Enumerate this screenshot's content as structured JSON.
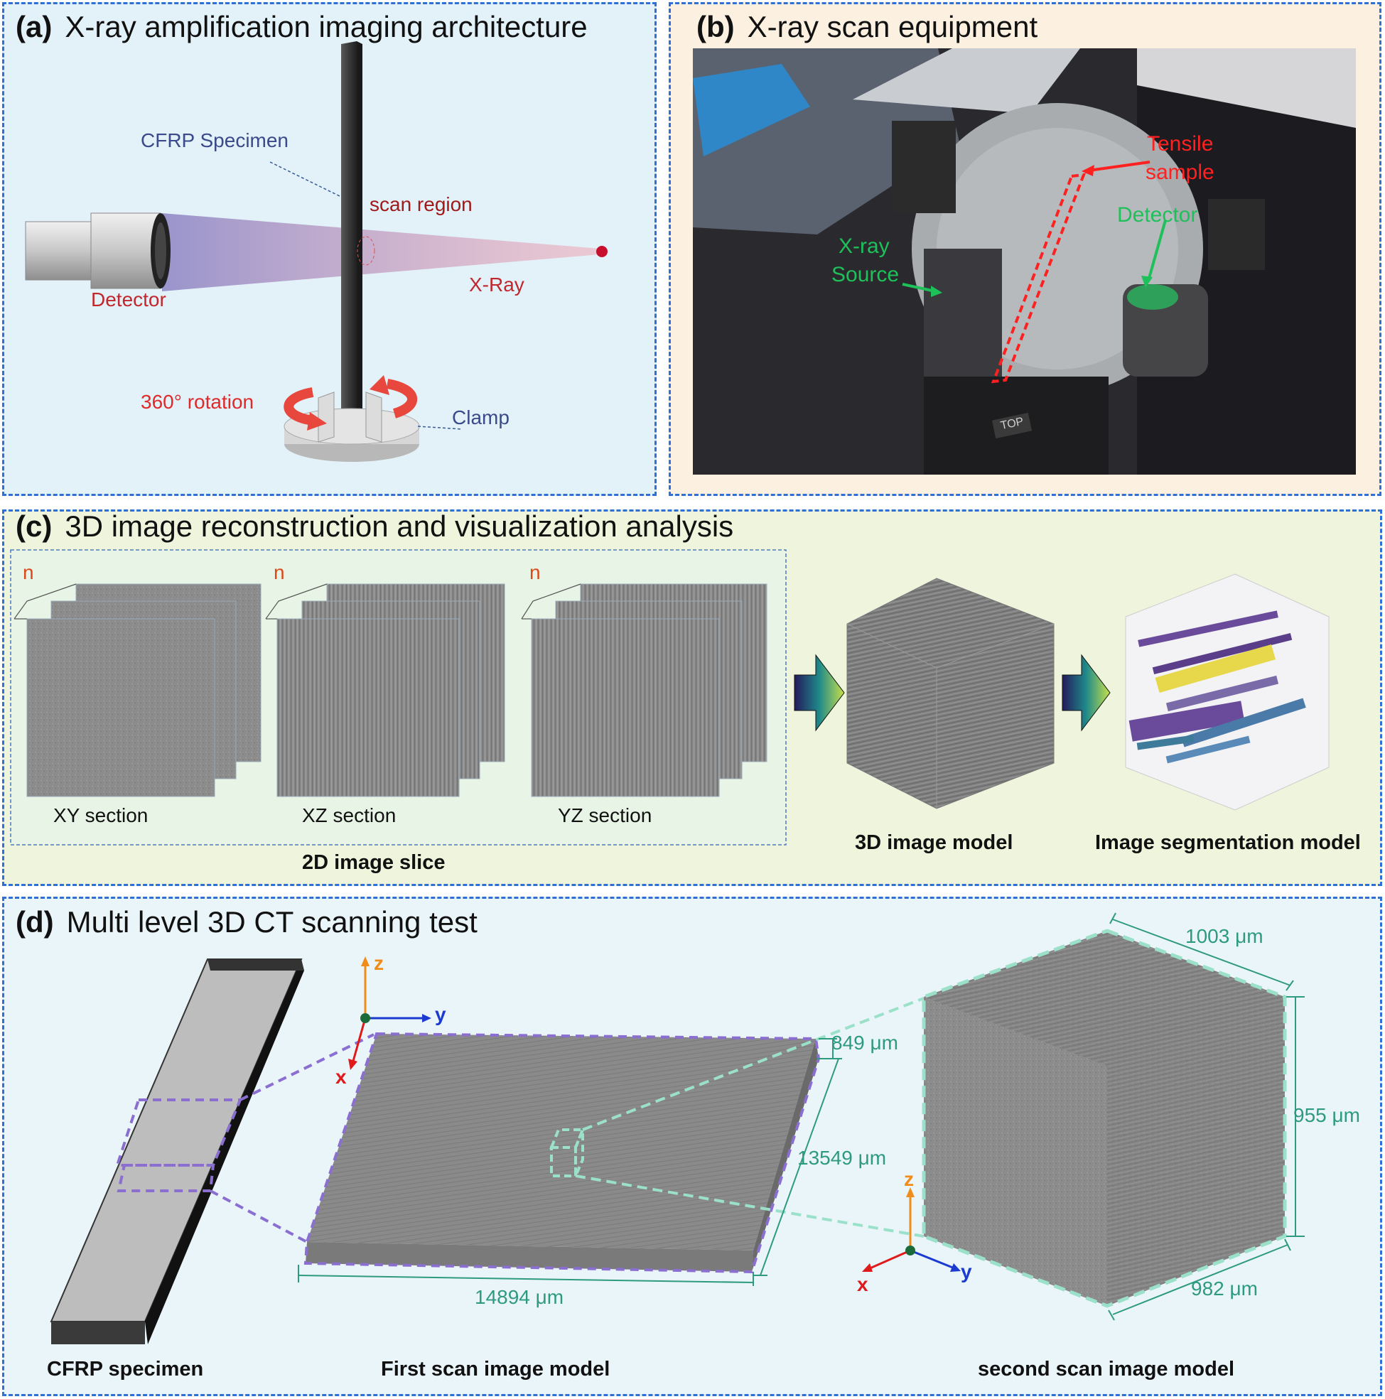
{
  "panel_a": {
    "tag": "(a)",
    "title": "X-ray amplification imaging architecture",
    "labels": {
      "specimen": "CFRP Specimen",
      "scan_region": "scan region",
      "detector": "Detector",
      "xray": "X-Ray",
      "rotation": "360° rotation",
      "clamp": "Clamp"
    }
  },
  "panel_b": {
    "tag": "(b)",
    "title": "X-ray scan equipment",
    "labels": {
      "tensile_1": "Tensile",
      "tensile_2": "sample",
      "detector": "Detector",
      "source_1": "X-ray",
      "source_2": "Source"
    },
    "badge": "TOP"
  },
  "panel_c": {
    "tag": "(c)",
    "title": "3D image reconstruction and visualization analysis",
    "stack_marker": "n",
    "sections": [
      "XY section",
      "XZ section",
      "YZ section"
    ],
    "slice_caption": "2D image slice",
    "model_caption": "3D image model",
    "segmentation_caption": "Image segmentation model"
  },
  "panel_d": {
    "tag": "(d)",
    "title": "Multi level 3D CT scanning test",
    "axes": {
      "x": "x",
      "y": "y",
      "z": "z"
    },
    "dims": {
      "thickness": "849 μm",
      "width": "13549 μm",
      "length": "14894 μm",
      "cube_top": "1003 μm",
      "cube_height": "955 μm",
      "cube_bottom": "982 μm"
    },
    "captions": {
      "specimen": "CFRP specimen",
      "first": "First scan image model",
      "second": "second scan image model"
    }
  },
  "colors": {
    "border": "#2f6fd6",
    "label_red": "#c0282d",
    "label_green": "#1e9a4a",
    "dim_teal": "#2e9a80",
    "purple_dash": "#8a6fd1",
    "mint_dash": "#9be0c8"
  }
}
